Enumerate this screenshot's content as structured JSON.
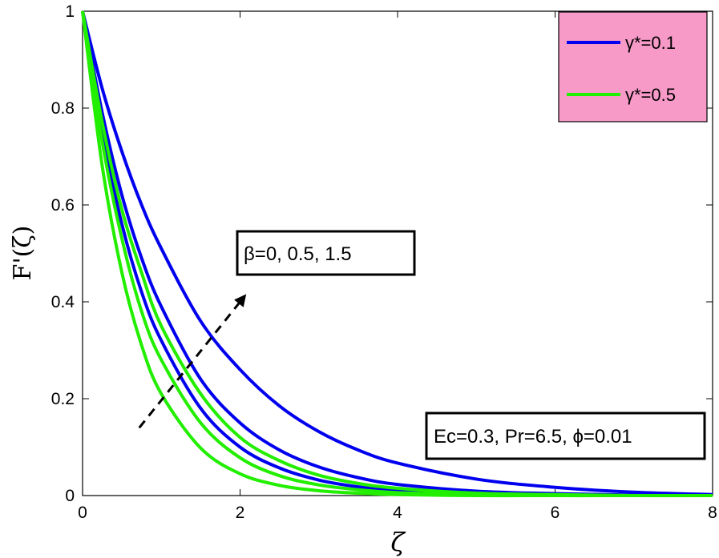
{
  "chart_data": {
    "type": "line",
    "xlabel": "ζ",
    "ylabel": "F'(ζ)",
    "xlim": [
      0,
      8
    ],
    "ylim": [
      0,
      1
    ],
    "xticks": [
      0,
      2,
      4,
      6,
      8
    ],
    "yticks": [
      0,
      0.2,
      0.4,
      0.6,
      0.8,
      1
    ],
    "xtick_labels": [
      "0",
      "2",
      "4",
      "6",
      "8"
    ],
    "ytick_labels": [
      "0",
      "0.2",
      "0.4",
      "0.6",
      "0.8",
      "1"
    ],
    "grid": false,
    "legend_position": "top-right",
    "legend": [
      {
        "text": "γ*=0.1",
        "color": "#0000ee"
      },
      {
        "text": "γ*=0.5",
        "color": "#22ee00"
      }
    ],
    "series": [
      {
        "group": "γ*=0.1",
        "beta": 0,
        "color": "#0000ee",
        "x": [
          0,
          0.25,
          0.5,
          0.75,
          1,
          1.5,
          2,
          2.5,
          3,
          3.5,
          4,
          5,
          6,
          7,
          8
        ],
        "y": [
          1,
          0.75,
          0.56,
          0.42,
          0.32,
          0.18,
          0.1,
          0.057,
          0.032,
          0.018,
          0.01,
          0.003,
          0.001,
          0,
          0
        ]
      },
      {
        "group": "γ*=0.1",
        "beta": 0.5,
        "color": "#0000ee",
        "x": [
          0,
          0.25,
          0.5,
          0.75,
          1,
          1.5,
          2,
          2.5,
          3,
          3.5,
          4,
          5,
          6,
          7,
          8
        ],
        "y": [
          1,
          0.79,
          0.62,
          0.49,
          0.39,
          0.24,
          0.15,
          0.094,
          0.059,
          0.037,
          0.023,
          0.009,
          0.004,
          0.001,
          0
        ]
      },
      {
        "group": "γ*=0.1",
        "beta": 1.5,
        "color": "#0000ee",
        "x": [
          0,
          0.25,
          0.5,
          0.75,
          1,
          1.5,
          2,
          2.5,
          3,
          3.5,
          4,
          5,
          6,
          7,
          8
        ],
        "y": [
          1,
          0.84,
          0.71,
          0.6,
          0.51,
          0.36,
          0.26,
          0.185,
          0.132,
          0.094,
          0.067,
          0.034,
          0.017,
          0.007,
          0.002
        ]
      },
      {
        "group": "γ*=0.5",
        "beta": 0,
        "color": "#22ee00",
        "x": [
          0,
          0.25,
          0.5,
          0.75,
          1,
          1.5,
          2,
          2.5,
          3,
          3.5,
          4,
          5,
          6,
          7,
          8
        ],
        "y": [
          1,
          0.68,
          0.46,
          0.31,
          0.21,
          0.098,
          0.045,
          0.021,
          0.01,
          0.005,
          0.002,
          0,
          0,
          0,
          0
        ]
      },
      {
        "group": "γ*=0.5",
        "beta": 0.5,
        "color": "#22ee00",
        "x": [
          0,
          0.25,
          0.5,
          0.75,
          1,
          1.5,
          2,
          2.5,
          3,
          3.5,
          4,
          5,
          6,
          7,
          8
        ],
        "y": [
          1,
          0.73,
          0.53,
          0.38,
          0.28,
          0.15,
          0.078,
          0.041,
          0.022,
          0.012,
          0.006,
          0.002,
          0,
          0,
          0
        ]
      },
      {
        "group": "γ*=0.5",
        "beta": 1.5,
        "color": "#22ee00",
        "x": [
          0,
          0.25,
          0.5,
          0.75,
          1,
          1.5,
          2,
          2.5,
          3,
          3.5,
          4,
          5,
          6,
          7,
          8
        ],
        "y": [
          1,
          0.77,
          0.59,
          0.46,
          0.35,
          0.21,
          0.12,
          0.072,
          0.042,
          0.025,
          0.015,
          0.005,
          0.002,
          0,
          0
        ]
      }
    ],
    "annotations": {
      "beta_label": "β=0, 0.5, 1.5",
      "params_label": "Ec=0.3, Pr=6.5,  ϕ=0.01",
      "arrow": {
        "from": [
          0.72,
          0.14
        ],
        "to": [
          2.05,
          0.41
        ]
      }
    }
  }
}
